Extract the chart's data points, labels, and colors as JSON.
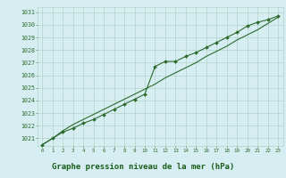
{
  "title": "Graphe pression niveau de la mer (hPa)",
  "x_hours": [
    0,
    1,
    2,
    3,
    4,
    5,
    6,
    7,
    8,
    9,
    10,
    11,
    12,
    13,
    14,
    15,
    16,
    17,
    18,
    19,
    20,
    21,
    22,
    23
  ],
  "y_data": [
    1020.5,
    1021.0,
    1021.5,
    1021.8,
    1022.2,
    1022.5,
    1022.9,
    1023.3,
    1023.7,
    1024.1,
    1024.5,
    1026.7,
    1027.1,
    1027.1,
    1027.5,
    1027.8,
    1028.2,
    1028.6,
    1029.0,
    1029.4,
    1029.9,
    1030.2,
    1030.4,
    1030.7
  ],
  "y_smooth": [
    1020.5,
    1021.0,
    1021.6,
    1022.1,
    1022.5,
    1022.9,
    1023.3,
    1023.7,
    1024.1,
    1024.5,
    1024.9,
    1025.3,
    1025.8,
    1026.2,
    1026.6,
    1027.0,
    1027.5,
    1027.9,
    1028.3,
    1028.8,
    1029.2,
    1029.6,
    1030.1,
    1030.6
  ],
  "ylim": [
    1020.4,
    1031.4
  ],
  "yticks": [
    1021,
    1022,
    1023,
    1024,
    1025,
    1026,
    1027,
    1028,
    1029,
    1030,
    1031
  ],
  "xlim": [
    -0.5,
    23.5
  ],
  "xticks": [
    0,
    1,
    2,
    3,
    4,
    5,
    6,
    7,
    8,
    9,
    10,
    11,
    12,
    13,
    14,
    15,
    16,
    17,
    18,
    19,
    20,
    21,
    22,
    23
  ],
  "line_color": "#2d6a2d",
  "bg_color": "#d6eef2",
  "grid_color": "#b0d4c8",
  "title_color": "#1a5c1a",
  "title_bg": "#55aa55",
  "title_fontsize": 6.5,
  "marker_size": 2.0
}
